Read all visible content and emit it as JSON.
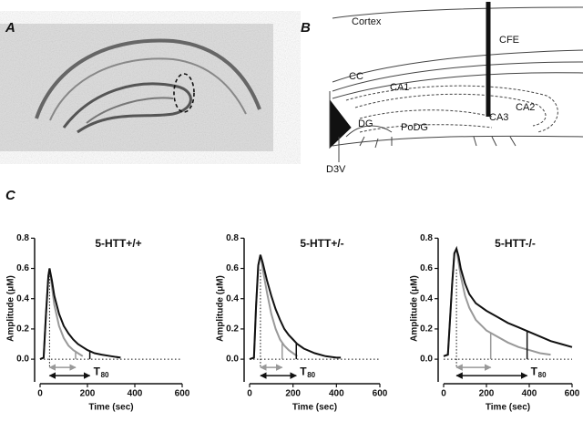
{
  "panels": {
    "a": "A",
    "b": "B",
    "c": "C"
  },
  "diagram_b": {
    "cortex": "Cortex",
    "cfe": "CFE",
    "cc": "CC",
    "ca1": "CA1",
    "ca2": "CA2",
    "ca3": "CA3",
    "dg": "DG",
    "podg": "PoDG",
    "d3v": "D3V"
  },
  "chart_data": [
    {
      "type": "line",
      "title": "5-HTT+/+",
      "x_label": "Time (sec)",
      "y_label": "Amplitude (μM)",
      "annotation": {
        "text": "T",
        "subscript": "80"
      },
      "xlim": [
        0,
        600
      ],
      "xticks": [
        0,
        200,
        400,
        600
      ],
      "ylim": [
        -0.15,
        0.82
      ],
      "yticks": [
        {
          "value": 0,
          "label": "0.0"
        },
        0.2,
        0.4,
        0.6,
        0.8
      ],
      "peak_x": 40,
      "x": [
        0,
        15,
        25,
        35,
        40,
        50,
        60,
        80,
        100,
        120,
        140,
        160,
        180,
        200,
        230,
        260,
        300,
        340
      ],
      "series": [
        {
          "color": "#999999",
          "t80": 150,
          "values": [
            0,
            0.01,
            0.3,
            0.55,
            0.6,
            0.48,
            0.36,
            0.22,
            0.14,
            0.09,
            0.06,
            0.04,
            0.02,
            null,
            null,
            null,
            null,
            null
          ]
        },
        {
          "color": "#111111",
          "t80": 210,
          "values": [
            0,
            0.01,
            0.3,
            0.55,
            0.6,
            0.52,
            0.42,
            0.3,
            0.22,
            0.17,
            0.13,
            0.1,
            0.08,
            0.06,
            0.04,
            0.03,
            0.02,
            0.01
          ]
        }
      ]
    },
    {
      "type": "line",
      "title": "5-HTT+/-",
      "x_label": "Time (sec)",
      "y_label": "Amplitude (μM)",
      "annotation": {
        "text": "T",
        "subscript": "80"
      },
      "xlim": [
        0,
        600
      ],
      "xticks": [
        0,
        200,
        400,
        600
      ],
      "ylim": [
        -0.15,
        0.82
      ],
      "yticks": [
        {
          "value": 0,
          "label": "0.0"
        },
        0.2,
        0.4,
        0.6,
        0.8
      ],
      "peak_x": 50,
      "x": [
        0,
        20,
        30,
        40,
        50,
        60,
        80,
        100,
        120,
        140,
        160,
        180,
        200,
        220,
        250,
        300,
        350,
        400,
        420
      ],
      "series": [
        {
          "color": "#999999",
          "t80": 150,
          "values": [
            0,
            0.01,
            0.35,
            0.62,
            0.69,
            0.6,
            0.44,
            0.3,
            0.2,
            0.13,
            0.09,
            0.06,
            0.04,
            0.02,
            null,
            null,
            null,
            null,
            null
          ]
        },
        {
          "color": "#111111",
          "t80": 215,
          "values": [
            0,
            0.01,
            0.35,
            0.62,
            0.69,
            0.64,
            0.52,
            0.42,
            0.33,
            0.26,
            0.2,
            0.16,
            0.13,
            0.1,
            0.07,
            0.04,
            0.02,
            0.01,
            0.01
          ]
        }
      ]
    },
    {
      "type": "line",
      "title": "5-HTT-/-",
      "x_label": "Time (sec)",
      "y_label": "Amplitude (μM)",
      "annotation": {
        "text": "T",
        "subscript": "80"
      },
      "xlim": [
        0,
        600
      ],
      "xticks": [
        0,
        200,
        400,
        600
      ],
      "ylim": [
        -0.15,
        0.82
      ],
      "yticks": [
        {
          "value": 0,
          "label": "0.0"
        },
        0.2,
        0.4,
        0.6,
        0.8
      ],
      "peak_x": 60,
      "x": [
        0,
        20,
        40,
        50,
        60,
        70,
        80,
        100,
        120,
        150,
        200,
        250,
        300,
        350,
        400,
        450,
        500,
        550,
        600
      ],
      "series": [
        {
          "color": "#999999",
          "t80": 220,
          "values": [
            0.02,
            0.03,
            0.5,
            0.7,
            0.73,
            0.64,
            0.55,
            0.42,
            0.34,
            0.26,
            0.19,
            0.15,
            0.11,
            0.08,
            0.06,
            0.04,
            0.03,
            null,
            null
          ]
        },
        {
          "color": "#111111",
          "t80": 390,
          "values": [
            0.02,
            0.03,
            0.5,
            0.7,
            0.73,
            0.68,
            0.6,
            0.5,
            0.43,
            0.37,
            0.32,
            0.28,
            0.24,
            0.21,
            0.18,
            0.15,
            0.12,
            0.1,
            0.08
          ]
        }
      ]
    }
  ]
}
